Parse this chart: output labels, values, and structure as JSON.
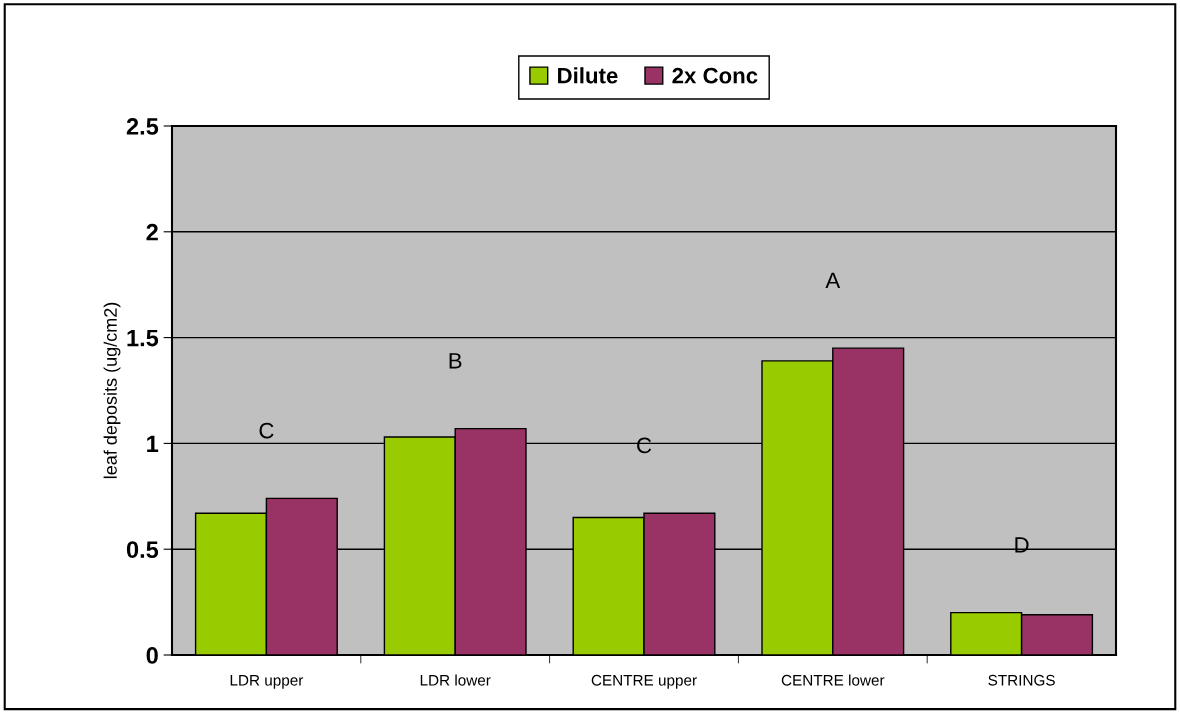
{
  "chart_data": {
    "type": "bar",
    "ylabel": "leaf deposits (ug/cm2)",
    "categories": [
      "LDR upper",
      "LDR lower",
      "CENTRE upper",
      "CENTRE lower",
      "STRINGS"
    ],
    "series": [
      {
        "name": "Dilute",
        "color": "#99cc00",
        "values": [
          0.67,
          1.03,
          0.65,
          1.39,
          0.2
        ]
      },
      {
        "name": "2x Conc",
        "color": "#993366",
        "values": [
          0.74,
          1.07,
          0.67,
          1.45,
          0.19
        ]
      }
    ],
    "ylim": [
      0,
      2.5
    ],
    "yticks": [
      0,
      0.5,
      1,
      1.5,
      2,
      2.5
    ],
    "grid": "y",
    "legend": "top",
    "annotations": [
      "C",
      "B",
      "C",
      "A",
      "D"
    ]
  }
}
